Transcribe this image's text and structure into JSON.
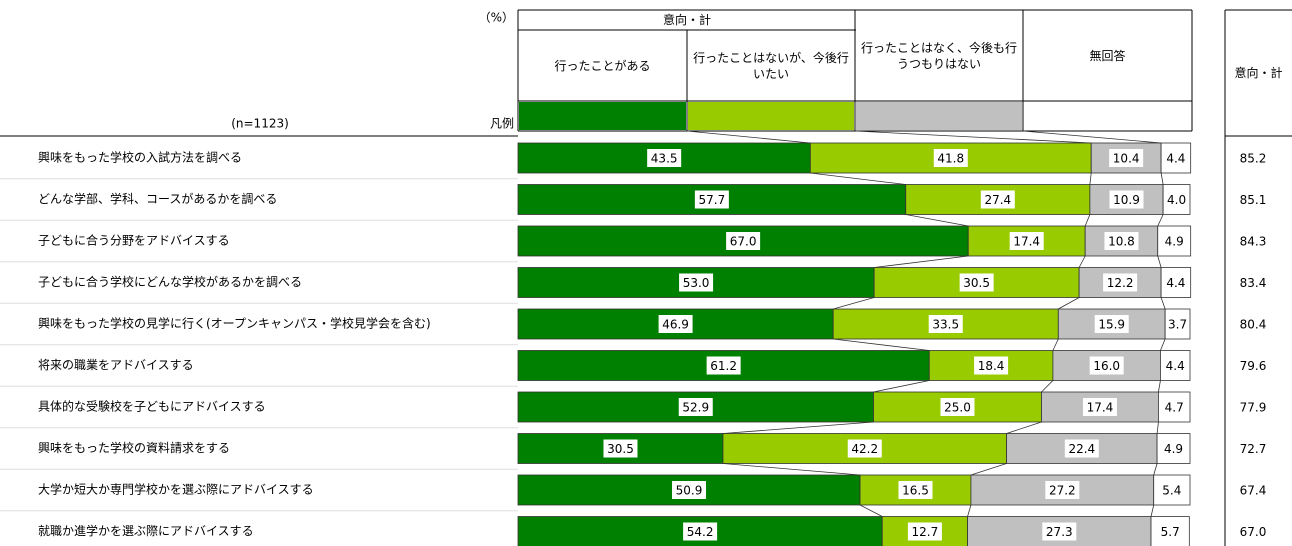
{
  "chart_data": {
    "type": "stacked_bar",
    "unit_label": "（%）",
    "sample_label": "(n=1123)",
    "legend_label": "凡例",
    "group_header": "意向・計",
    "xlim": [
      0,
      100
    ],
    "categories": [
      "興味をもった学校の入試方法を調べる",
      "どんな学部、学科、コースがあるかを調べる",
      "子どもに合う分野をアドバイスする",
      "子どもに合う学校にどんな学校があるかを調べる",
      "興味をもった学校の見学に行く(オープンキャンパス・学校見学会を含む)",
      "将来の職業をアドバイスする",
      "具体的な受験校を子どもにアドバイスする",
      "興味をもった学校の資料請求をする",
      "大学か短大か専門学校かを選ぶ際にアドバイスする",
      "就職か進学かを選ぶ際にアドバイスする"
    ],
    "series": [
      {
        "name": "行ったことがある",
        "color": "#008000",
        "values": [
          43.5,
          57.7,
          67.0,
          53.0,
          46.9,
          61.2,
          52.9,
          30.5,
          50.9,
          54.2
        ],
        "value_labels": [
          "43.5",
          "57.7",
          "67.0",
          "53.0",
          "46.9",
          "61.2",
          "52.9",
          "30.5",
          "50.9",
          "54.2"
        ]
      },
      {
        "name": "行ったことはないが、今後行いたい",
        "color": "#99cc00",
        "values": [
          41.8,
          27.4,
          17.4,
          30.5,
          33.5,
          18.4,
          25.0,
          42.2,
          16.5,
          12.7
        ],
        "value_labels": [
          "41.8",
          "27.4",
          "17.4",
          "30.5",
          "33.5",
          "18.4",
          "25.0",
          "42.2",
          "16.5",
          "12.7"
        ]
      },
      {
        "name": "行ったことはなく、今後も行うつもりはない",
        "color": "#c0c0c0",
        "values": [
          10.4,
          10.9,
          10.8,
          12.2,
          15.9,
          16.0,
          17.4,
          22.4,
          27.2,
          27.3
        ],
        "value_labels": [
          "10.4",
          "10.9",
          "10.8",
          "12.2",
          "15.9",
          "16.0",
          "17.4",
          "22.4",
          "27.2",
          "27.3"
        ]
      },
      {
        "name": "無回答",
        "color": "#ffffff",
        "values": [
          4.4,
          4.0,
          4.9,
          4.4,
          3.7,
          4.4,
          4.7,
          4.9,
          5.4,
          5.7
        ],
        "value_labels": [
          "4.4",
          "4.0",
          "4.9",
          "4.4",
          "3.7",
          "4.4",
          "4.7",
          "4.9",
          "5.4",
          "5.7"
        ]
      }
    ],
    "total": {
      "name": "意向・計",
      "values": [
        85.2,
        85.1,
        84.3,
        83.4,
        80.4,
        79.6,
        77.9,
        72.7,
        67.4,
        67.0
      ],
      "value_labels": [
        "85.2",
        "85.1",
        "84.3",
        "83.4",
        "80.4",
        "79.6",
        "77.9",
        "72.7",
        "67.4",
        "67.0"
      ]
    }
  }
}
